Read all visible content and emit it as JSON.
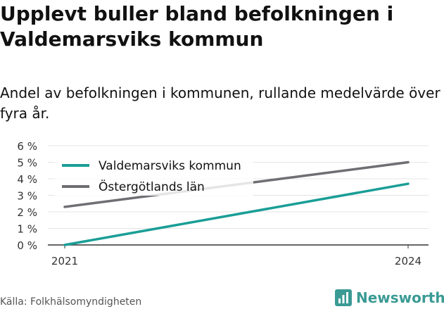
{
  "header": {
    "title": "Upplevt buller bland befolkningen i Valdemarsviks kommun",
    "subtitle": "Andel av befolkningen i kommunen, rullande medelvärde över fyra år."
  },
  "footer": {
    "source": "Källa: Folkhälsomyndigheten",
    "brand": "Newsworthy",
    "brand_icon": "bar-chart-logo-icon"
  },
  "colors": {
    "kommun": "#1a9e96",
    "lan": "#6e6e73",
    "grid": "#e4e4e4",
    "axis": "#333333",
    "brand": "#3a9a94"
  },
  "chart_data": {
    "type": "line",
    "x": [
      2021,
      2024
    ],
    "xticks": [
      "2021",
      "2024"
    ],
    "ylim": [
      0,
      6
    ],
    "yticks": [
      "0 %",
      "1 %",
      "2 %",
      "3 %",
      "4 %",
      "5 %",
      "6 %"
    ],
    "grid": true,
    "legend_position": "top-left",
    "series": [
      {
        "name": "Valdemarsviks kommun",
        "values": [
          0.0,
          3.7
        ]
      },
      {
        "name": "Östergötlands län",
        "values": [
          2.3,
          5.0
        ]
      }
    ]
  }
}
